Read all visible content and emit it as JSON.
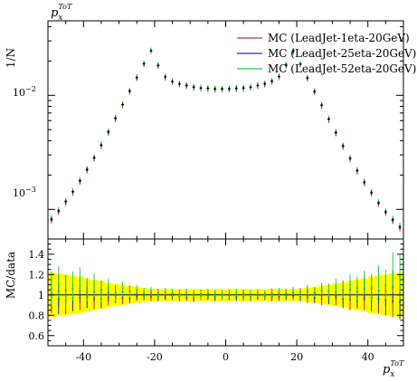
{
  "chart_data": [
    {
      "type": "line",
      "title": "p_x^ToT",
      "title_main": "p",
      "title_sub": "x",
      "title_sup": "ToT",
      "ylabel": "1/N",
      "yscale": "log",
      "ylim": [
        0.00055,
        0.045
      ],
      "xlim": [
        -50,
        50
      ],
      "y_tick_labels": [
        {
          "value": 0.01,
          "base": "10",
          "exp": "−2"
        },
        {
          "value": 0.001,
          "base": "10",
          "exp": "−3"
        }
      ],
      "legend_placement": "top-right",
      "x": [
        -49,
        -47,
        -45,
        -43,
        -41,
        -39,
        -37,
        -35,
        -33,
        -31,
        -29,
        -27,
        -25,
        -23,
        -21,
        -19,
        -17,
        -15,
        -13,
        -11,
        -9,
        -7,
        -5,
        -3,
        -1,
        1,
        3,
        5,
        7,
        9,
        11,
        13,
        15,
        17,
        19,
        21,
        23,
        25,
        27,
        29,
        31,
        33,
        35,
        37,
        39,
        41,
        43,
        45,
        47,
        49
      ],
      "series": [
        {
          "name": "MC (LeadJet-1eta-20GeV)",
          "color": "#d62728",
          "values": [
            0.0008,
            0.00095,
            0.00115,
            0.0014,
            0.00175,
            0.0022,
            0.0028,
            0.0036,
            0.0047,
            0.0062,
            0.0082,
            0.0108,
            0.0142,
            0.0188,
            0.0245,
            0.0182,
            0.0144,
            0.0131,
            0.0125,
            0.0121,
            0.0117,
            0.0115,
            0.0114,
            0.0113,
            0.0113,
            0.0113,
            0.0114,
            0.0115,
            0.0117,
            0.0121,
            0.0125,
            0.0132,
            0.0145,
            0.0183,
            0.0244,
            0.0187,
            0.0141,
            0.0107,
            0.0081,
            0.0061,
            0.00465,
            0.00355,
            0.00275,
            0.00215,
            0.0017,
            0.00138,
            0.00112,
            0.00093,
            0.00079,
            0.00068
          ]
        },
        {
          "name": "MC (LeadJet-25eta-20GeV)",
          "color": "#1f2fd6",
          "values": [
            0.00082,
            0.00097,
            0.00117,
            0.00143,
            0.00178,
            0.00224,
            0.00284,
            0.00366,
            0.00478,
            0.0063,
            0.0083,
            0.0109,
            0.0143,
            0.0189,
            0.0246,
            0.0183,
            0.0145,
            0.0132,
            0.0126,
            0.0122,
            0.0118,
            0.0116,
            0.0115,
            0.0114,
            0.0114,
            0.0114,
            0.0115,
            0.0116,
            0.0118,
            0.0122,
            0.0126,
            0.0133,
            0.0146,
            0.0184,
            0.0245,
            0.0188,
            0.0142,
            0.0108,
            0.0082,
            0.0062,
            0.00472,
            0.0036,
            0.0028,
            0.00219,
            0.00173,
            0.0014,
            0.00114,
            0.00095,
            0.00081,
            0.0007
          ]
        },
        {
          "name": "MC (LeadJet-52eta-20GeV)",
          "color": "#2ecc40",
          "values": [
            0.00084,
            0.00099,
            0.00119,
            0.00145,
            0.00181,
            0.00227,
            0.00288,
            0.00371,
            0.00484,
            0.00637,
            0.00838,
            0.011,
            0.0144,
            0.019,
            0.0247,
            0.0184,
            0.0146,
            0.0133,
            0.0127,
            0.0123,
            0.0119,
            0.0117,
            0.0116,
            0.0115,
            0.0115,
            0.0115,
            0.0116,
            0.0117,
            0.0119,
            0.0123,
            0.0127,
            0.0134,
            0.0147,
            0.0185,
            0.0246,
            0.0189,
            0.0143,
            0.0109,
            0.0083,
            0.00628,
            0.00478,
            0.00365,
            0.00284,
            0.00222,
            0.00176,
            0.00142,
            0.00116,
            0.00097,
            0.00083,
            0.00072
          ]
        }
      ],
      "reference": {
        "color": "#000000",
        "values": [
          0.00082,
          0.00097,
          0.00117,
          0.00143,
          0.00178,
          0.00224,
          0.00284,
          0.00366,
          0.00478,
          0.0063,
          0.0083,
          0.0109,
          0.0143,
          0.0189,
          0.0246,
          0.0183,
          0.0145,
          0.0132,
          0.0126,
          0.0122,
          0.0118,
          0.0116,
          0.0115,
          0.0114,
          0.0114,
          0.0114,
          0.0115,
          0.0116,
          0.0118,
          0.0122,
          0.0126,
          0.0133,
          0.0146,
          0.0184,
          0.0245,
          0.0188,
          0.0142,
          0.0108,
          0.0082,
          0.0062,
          0.00472,
          0.0036,
          0.0028,
          0.00219,
          0.00173,
          0.0014,
          0.00114,
          0.00095,
          0.00081,
          0.0007
        ]
      }
    },
    {
      "type": "line",
      "ylabel": "MC/data",
      "xlabel": "p_x^ToT",
      "xlabel_main": "p",
      "xlabel_sub": "x",
      "xlabel_sup": "ToT",
      "ylim": [
        0.5,
        1.55
      ],
      "xlim": [
        -50,
        50
      ],
      "y_ticks": [
        0.6,
        0.8,
        1,
        1.2,
        1.4
      ],
      "y_tick_labels": [
        "0.6",
        "0.8",
        "1",
        "1.2",
        "1.4"
      ],
      "x_ticks": [
        -40,
        -20,
        0,
        20,
        40
      ],
      "x_tick_labels": [
        "-40",
        "-20",
        "0",
        "20",
        "40"
      ],
      "band_color": "#ffff00",
      "band_halfwidth": [
        0.22,
        0.21,
        0.2,
        0.19,
        0.18,
        0.16,
        0.15,
        0.14,
        0.12,
        0.11,
        0.1,
        0.09,
        0.08,
        0.07,
        0.06,
        0.06,
        0.06,
        0.06,
        0.06,
        0.06,
        0.06,
        0.06,
        0.06,
        0.06,
        0.06,
        0.06,
        0.06,
        0.06,
        0.06,
        0.06,
        0.06,
        0.06,
        0.06,
        0.06,
        0.06,
        0.06,
        0.07,
        0.08,
        0.09,
        0.1,
        0.11,
        0.12,
        0.14,
        0.15,
        0.16,
        0.18,
        0.19,
        0.2,
        0.21,
        0.22
      ],
      "ratio_series": [
        {
          "name": "MC (LeadJet-1eta-20GeV)",
          "color": "#d62728",
          "values": [
            0.98,
            1.04,
            0.95,
            1.06,
            0.97,
            1.03,
            0.96,
            1.05,
            0.98,
            1.02,
            0.97,
            1.04,
            0.99,
            1.01,
            0.98,
            1.02,
            1.0,
            0.99,
            1.01,
            0.98,
            1.0,
            0.99,
            1.01,
            1.0,
            0.99,
            1.01,
            1.0,
            0.98,
            1.01,
            0.99,
            1.0,
            1.02,
            0.98,
            1.01,
            0.99,
            1.03,
            0.97,
            1.02,
            0.96,
            1.04,
            0.98,
            1.05,
            0.95,
            1.03,
            0.97,
            1.06,
            0.96,
            1.04,
            0.94,
            1.02
          ],
          "err": [
            0.16,
            0.15,
            0.14,
            0.13,
            0.12,
            0.11,
            0.1,
            0.09,
            0.08,
            0.07,
            0.06,
            0.05,
            0.05,
            0.04,
            0.04,
            0.04,
            0.04,
            0.04,
            0.04,
            0.04,
            0.04,
            0.04,
            0.04,
            0.04,
            0.04,
            0.04,
            0.04,
            0.04,
            0.04,
            0.04,
            0.04,
            0.04,
            0.04,
            0.04,
            0.04,
            0.04,
            0.05,
            0.05,
            0.06,
            0.07,
            0.08,
            0.09,
            0.1,
            0.11,
            0.12,
            0.13,
            0.14,
            0.15,
            0.16,
            0.17
          ]
        },
        {
          "name": "MC (LeadJet-25eta-20GeV)",
          "color": "#1f2fd6",
          "values": [
            1.02,
            0.96,
            1.05,
            0.97,
            1.04,
            0.98,
            1.03,
            0.96,
            1.02,
            0.99,
            1.03,
            0.97,
            1.01,
            0.99,
            1.02,
            0.98,
            0.99,
            1.01,
            0.98,
            1.0,
            0.97,
            1.01,
            0.99,
            0.98,
            1.0,
            0.99,
            0.98,
            1.01,
            0.98,
            1.0,
            0.99,
            0.98,
            1.01,
            0.99,
            1.02,
            0.98,
            1.03,
            0.97,
            1.04,
            0.98,
            1.03,
            0.96,
            1.05,
            0.98,
            1.06,
            0.97,
            1.04,
            0.95,
            1.08,
            0.93
          ],
          "err": [
            0.16,
            0.15,
            0.14,
            0.13,
            0.12,
            0.11,
            0.1,
            0.09,
            0.08,
            0.07,
            0.06,
            0.05,
            0.05,
            0.04,
            0.04,
            0.04,
            0.04,
            0.04,
            0.04,
            0.04,
            0.04,
            0.04,
            0.04,
            0.04,
            0.04,
            0.04,
            0.04,
            0.04,
            0.04,
            0.04,
            0.04,
            0.04,
            0.04,
            0.04,
            0.04,
            0.04,
            0.05,
            0.05,
            0.06,
            0.07,
            0.08,
            0.09,
            0.1,
            0.11,
            0.12,
            0.13,
            0.14,
            0.15,
            0.16,
            0.17
          ]
        },
        {
          "name": "MC (LeadJet-52eta-20GeV)",
          "color": "#2ecc40",
          "values": [
            1.06,
            1.12,
            1.03,
            1.09,
            1.14,
            1.05,
            1.1,
            1.03,
            1.07,
            1.02,
            1.06,
            1.03,
            1.05,
            1.02,
            1.04,
            1.01,
            1.03,
            1.02,
            1.0,
            1.02,
            1.01,
            1.0,
            1.02,
            1.01,
            1.0,
            1.01,
            1.02,
            1.0,
            1.01,
            1.02,
            1.0,
            1.01,
            1.03,
            1.02,
            1.04,
            1.01,
            1.05,
            1.03,
            1.06,
            1.04,
            1.08,
            1.05,
            1.1,
            1.07,
            1.12,
            1.08,
            1.15,
            1.1,
            1.22,
            1.18
          ],
          "err": [
            0.17,
            0.16,
            0.15,
            0.14,
            0.13,
            0.12,
            0.11,
            0.1,
            0.09,
            0.08,
            0.07,
            0.06,
            0.05,
            0.05,
            0.04,
            0.04,
            0.04,
            0.04,
            0.04,
            0.04,
            0.04,
            0.04,
            0.04,
            0.04,
            0.04,
            0.04,
            0.04,
            0.04,
            0.04,
            0.04,
            0.04,
            0.04,
            0.04,
            0.04,
            0.04,
            0.04,
            0.05,
            0.05,
            0.06,
            0.07,
            0.08,
            0.09,
            0.1,
            0.11,
            0.12,
            0.13,
            0.14,
            0.15,
            0.2,
            0.22
          ]
        }
      ]
    }
  ]
}
